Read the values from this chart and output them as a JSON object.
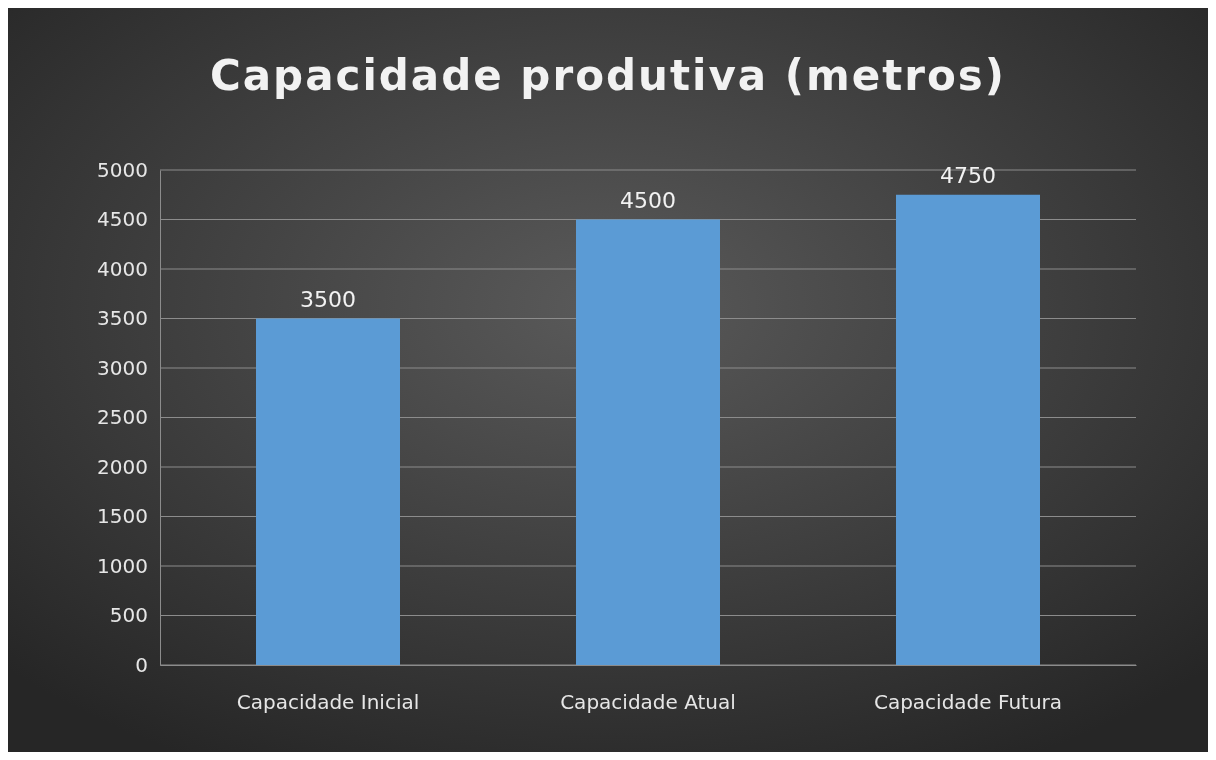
{
  "chart_data": {
    "type": "bar",
    "title": "Capacidade produtiva (metros)",
    "categories": [
      "Capacidade Inicial",
      "Capacidade Atual",
      "Capacidade Futura"
    ],
    "values": [
      3500,
      4500,
      4750
    ],
    "color": "#5b9bd5",
    "ylim": [
      0,
      5000
    ],
    "yticks": [
      0,
      500,
      1000,
      1500,
      2000,
      2500,
      3000,
      3500,
      4000,
      4500,
      5000
    ],
    "grid": "y",
    "data_labels": true
  }
}
